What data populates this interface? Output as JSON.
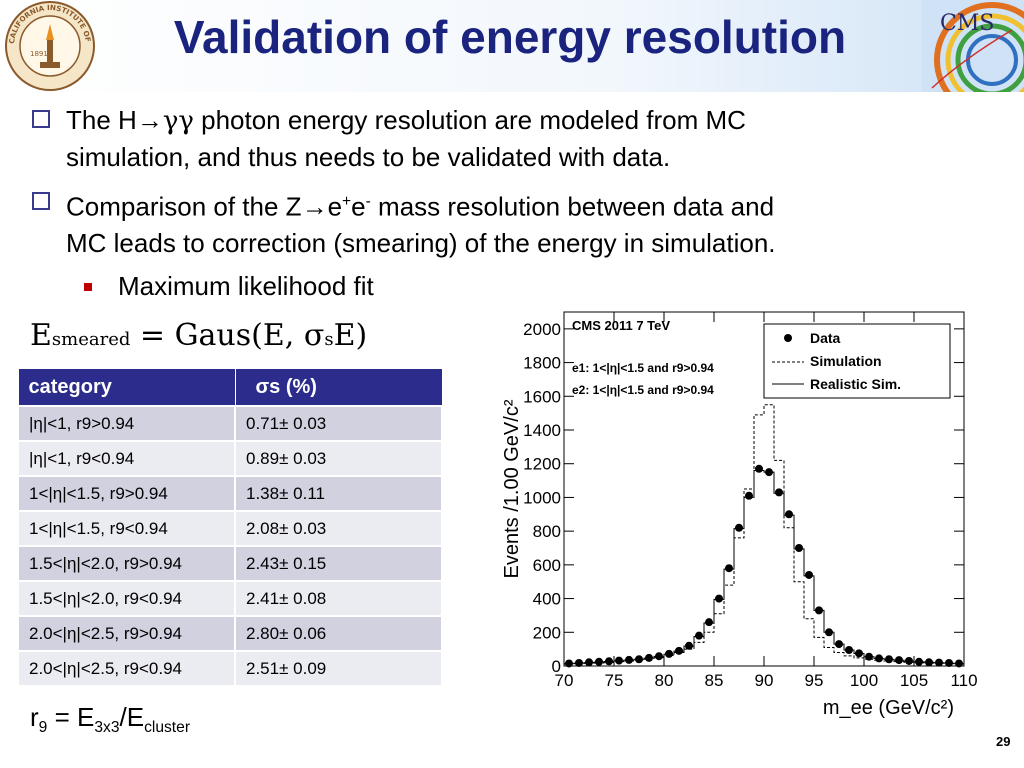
{
  "title": "Validation of energy resolution",
  "bullets": [
    {
      "pre": "The H",
      "arrow": "→",
      "gg": "γγ",
      "post": " photon energy resolution are modeled from MC",
      "line2": "simulation, and thus needs to be validated with data."
    },
    {
      "pre": "Comparison of the Z",
      "arrow": "→",
      "e1": "e",
      "sup1": "+",
      "e2": "e",
      "sup2": "-",
      "post": " mass resolution between data and",
      "line2": "MC leads to correction (smearing) of the energy in simulation."
    }
  ],
  "sub_bullet": "Maximum likelihood fit",
  "formula": {
    "lhs": "E",
    "lhs_sub": "smeared",
    "eq": " = Gaus(E, σ",
    "sig_sub": "s",
    "tail": "E)"
  },
  "table": {
    "headers": [
      "category",
      "σs (%)"
    ],
    "rows": [
      [
        "|η|<1, r9>0.94",
        "0.71± 0.03"
      ],
      [
        "|η|<1, r9<0.94",
        "0.89± 0.03"
      ],
      [
        "1<|η|<1.5, r9>0.94",
        "1.38± 0.11"
      ],
      [
        "1<|η|<1.5, r9<0.94",
        "2.08± 0.03"
      ],
      [
        "1.5<|η|<2.0, r9>0.94",
        "2.43± 0.15"
      ],
      [
        "1.5<|η|<2.0, r9<0.94",
        "2.41± 0.08"
      ],
      [
        "2.0<|η|<2.5, r9>0.94",
        "2.80± 0.06"
      ],
      [
        "2.0<|η|<2.5, r9<0.94",
        "2.51± 0.09"
      ]
    ]
  },
  "r9_def": {
    "r": "r",
    "r_sub": "9",
    "eq": " = E",
    "e_sub": "3x3",
    "slash": "/E",
    "c_sub": "cluster"
  },
  "page_number": "29",
  "logos": {
    "left": "CALIFORNIA INSTITUTE OF TECHNOLOGY",
    "left_year": "1891",
    "right": "CMS"
  },
  "chart_data": {
    "type": "line",
    "title": "CMS 2011 7 TeV",
    "xlabel": "m_ee (GeV/c²)",
    "ylabel": "Events /1.00 GeV/c²",
    "xlim": [
      70,
      110
    ],
    "ylim": [
      0,
      2100
    ],
    "xticks": [
      70,
      75,
      80,
      85,
      90,
      95,
      100,
      105,
      110
    ],
    "yticks": [
      0,
      200,
      400,
      600,
      800,
      1000,
      1200,
      1400,
      1600,
      1800,
      2000
    ],
    "annotations": [
      "e1: 1<|η|<1.5 and r9>0.94",
      "e2: 1<|η|<1.5 and r9>0.94"
    ],
    "legend": [
      "Data",
      "Simulation",
      "Realistic Sim."
    ],
    "legend_position": "top-right",
    "x": [
      70.5,
      71.5,
      72.5,
      73.5,
      74.5,
      75.5,
      76.5,
      77.5,
      78.5,
      79.5,
      80.5,
      81.5,
      82.5,
      83.5,
      84.5,
      85.5,
      86.5,
      87.5,
      88.5,
      89.5,
      90.5,
      91.5,
      92.5,
      93.5,
      94.5,
      95.5,
      96.5,
      97.5,
      98.5,
      99.5,
      100.5,
      101.5,
      102.5,
      103.5,
      104.5,
      105.5,
      106.5,
      107.5,
      108.5,
      109.5
    ],
    "series": [
      {
        "name": "Data",
        "values": [
          15,
          18,
          22,
          25,
          28,
          32,
          36,
          40,
          48,
          58,
          72,
          90,
          120,
          180,
          260,
          400,
          580,
          820,
          1010,
          1170,
          1150,
          1030,
          900,
          700,
          540,
          330,
          200,
          130,
          95,
          75,
          55,
          45,
          40,
          35,
          30,
          25,
          22,
          20,
          18,
          15
        ]
      },
      {
        "name": "Simulation",
        "values": [
          12,
          14,
          16,
          18,
          22,
          26,
          30,
          35,
          40,
          50,
          62,
          80,
          100,
          140,
          200,
          310,
          480,
          760,
          1050,
          1490,
          1550,
          1220,
          820,
          500,
          280,
          170,
          110,
          80,
          60,
          48,
          40,
          34,
          30,
          26,
          22,
          20,
          18,
          16,
          14,
          12
        ]
      },
      {
        "name": "Realistic Sim.",
        "values": [
          14,
          17,
          20,
          23,
          27,
          31,
          35,
          40,
          47,
          57,
          70,
          88,
          118,
          175,
          255,
          395,
          575,
          815,
          1000,
          1160,
          1150,
          1025,
          895,
          695,
          535,
          330,
          200,
          130,
          95,
          74,
          55,
          45,
          39,
          34,
          29,
          25,
          22,
          19,
          17,
          14
        ]
      }
    ]
  }
}
